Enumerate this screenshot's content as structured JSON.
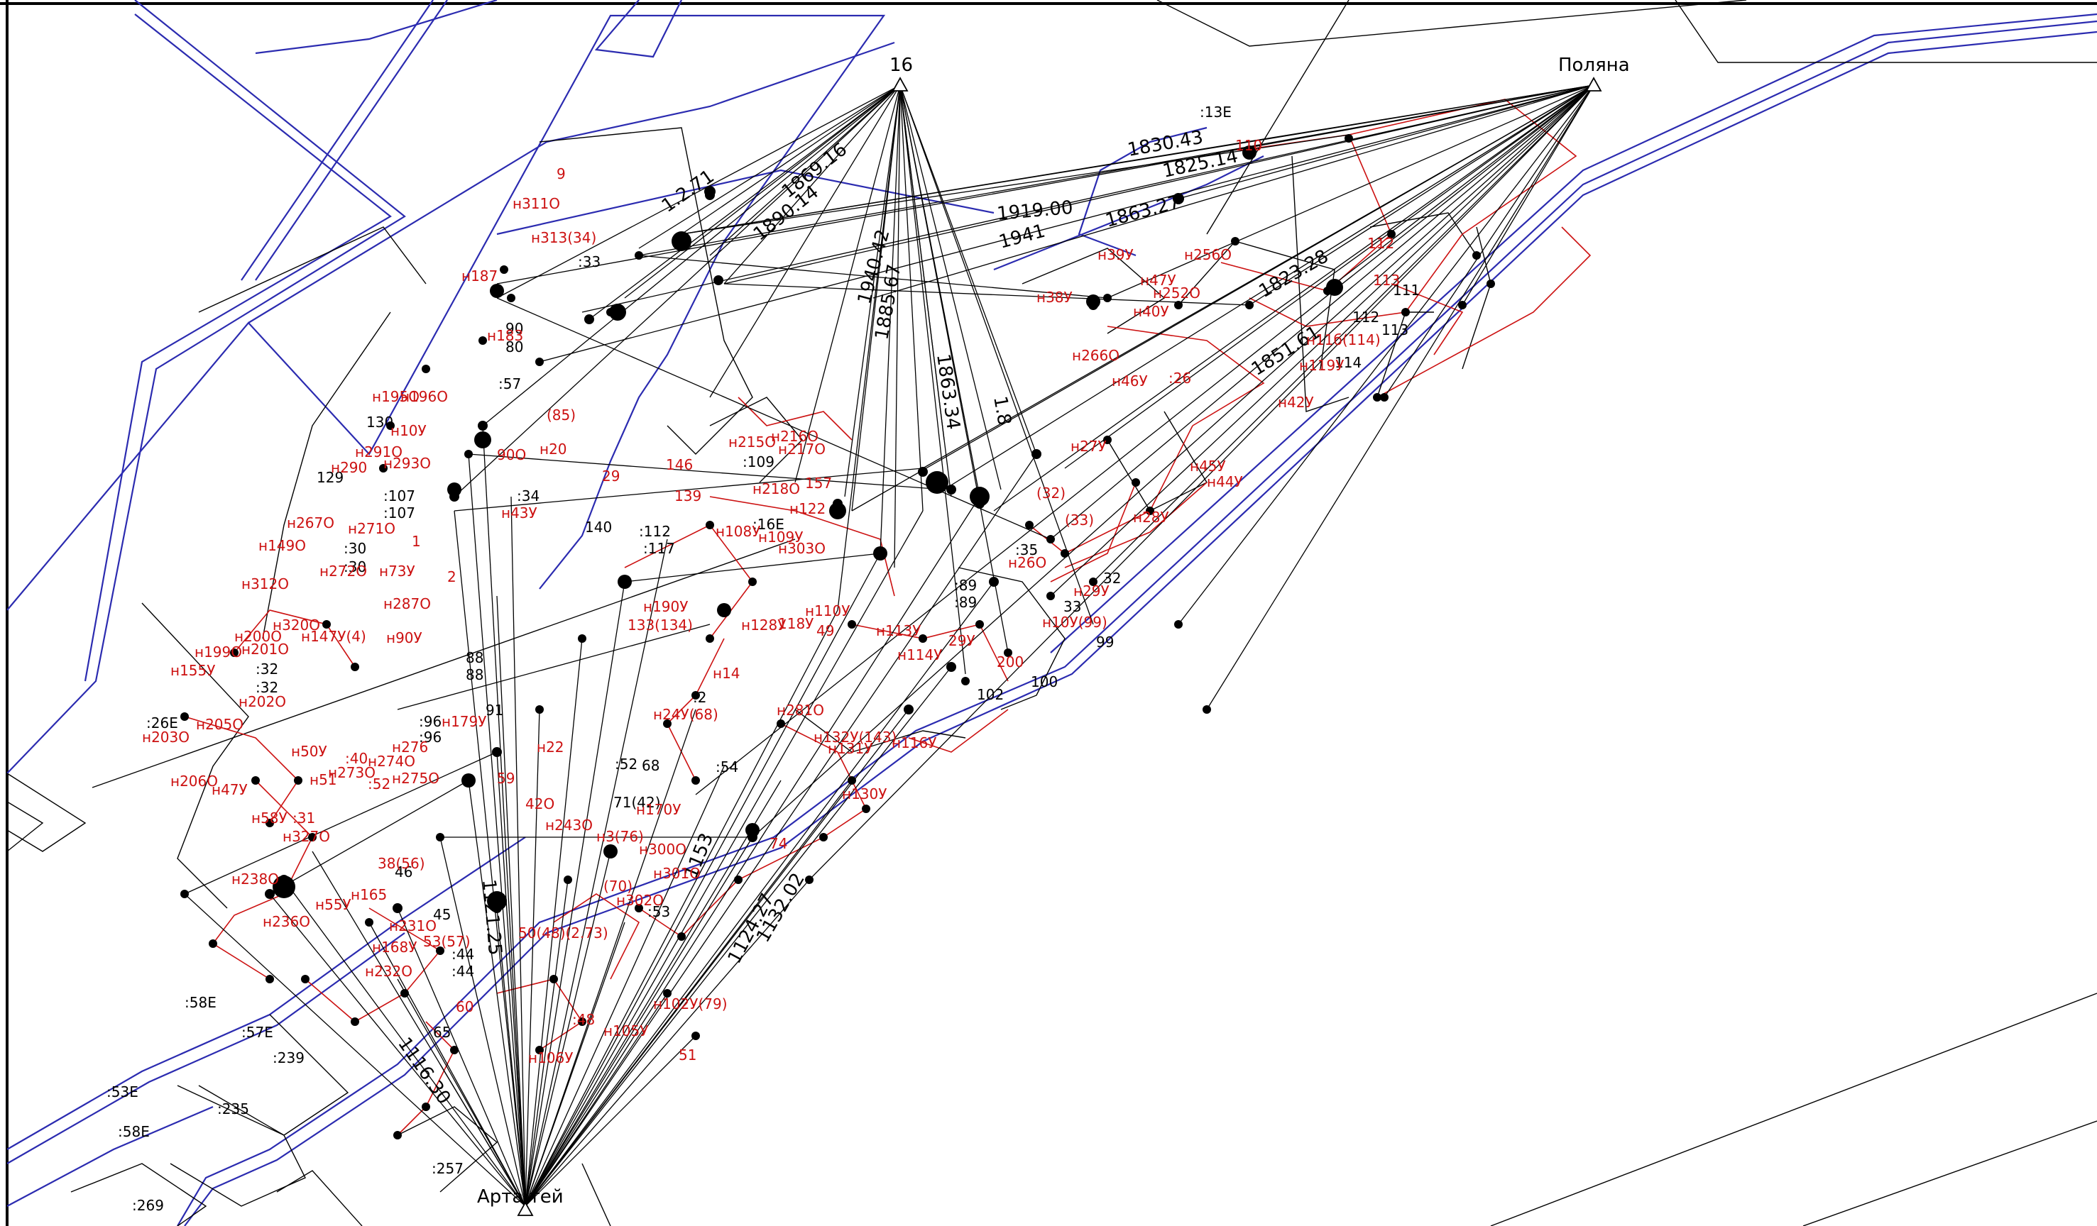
{
  "colors": {
    "background": "#ffffff",
    "parcel_blue": "#2b2bb0",
    "ray_black": "#000000",
    "point_red": "#cc1111",
    "label_black": "#000000"
  },
  "stations": {
    "s16": {
      "name": "16"
    },
    "polyana": {
      "name": "Поляна"
    },
    "artaktey": {
      "name": "Арта.тей"
    }
  },
  "black_labels": {
    "b13e": ":13E",
    "b111": "111",
    "b112": "112",
    "b113": "113",
    "b114": "114",
    "b109": ":109",
    "b16e": ":16E",
    "b112c": ":112",
    "b117": ":117",
    "b107a": ":107",
    "b107b": ":107",
    "b30a": ":30",
    "b30b": ":30",
    "b32a": ":32",
    "b32b": ":32",
    "b26e": ":26E",
    "b96a": ":96",
    "b96b": ":96",
    "b88a": "88",
    "b88b": "88",
    "b91": "91",
    "b68": "68",
    "b52": ":52",
    "b7142": "71(42)",
    "b89a": ":89",
    "b89b": ":89",
    "b99": "99",
    "b100": "100",
    "b102": "102",
    "b32c": "32",
    "b33": "33",
    "b35": ":35",
    "b44a": ":44",
    "b44b": ":44",
    "b45": "45",
    "b65": "65",
    "b53": ":53",
    "b57": ":57",
    "b90": "90",
    "b80": "80",
    "b34": ":34",
    "b58e": ":58E",
    "b57e": ":57E",
    "b239": ":239",
    "b53e": ":53E",
    "b58e2": ":58E",
    "b235": ":235",
    "b257": ":257",
    "b269": ":269",
    "b140": "140",
    "b129": "129",
    "b130": "130",
    "b33c": ":33",
    "b2": ":2",
    "b46": "46",
    "b54": ":54"
  },
  "red_labels": {
    "r110": "110",
    "r112": "112",
    "r113": "113",
    "r42u": "н42У",
    "r45u": "н45У",
    "r44u": "н44У",
    "r28u": "н28У",
    "r29u": "н29У",
    "r10999": "н10У(99)",
    "r26o": "н26О",
    "r33": "(33)",
    "r32": "(32)",
    "r27u": "н27У",
    "r46u": "н46У",
    "r26": ":26",
    "r266o": "н266О",
    "r47u": "н47У",
    "r40u": "н40У",
    "r252o": "н252О",
    "r39u": "н39У",
    "r38u": "н38У",
    "r256o": "н256О",
    "r11614": "н11б(114)",
    "r11912": "н119У",
    "r215o": "н215О",
    "r216o": "н216О",
    "r217o": "н217О",
    "r218o": "н218О",
    "r157": "157",
    "r139": "139",
    "r146": "146",
    "r122": "н122",
    "r108u": "н108У",
    "r109u": "н109У",
    "r303o": "н303О",
    "r128u": "н128У",
    "r118u": "118У",
    "r49": "49",
    "r110u": "н110У",
    "r113u": "н113У",
    "r114u": "н114У",
    "r29u2": "29У",
    "r200": "200",
    "r130u": "н130У",
    "r13212": "н132У(143)",
    "r131u": "н131У",
    "r116u": "н116У",
    "r14": "н14",
    "r281o": "н281О",
    "r74a": "74",
    "r190u": "н190У",
    "r133": "133(134)",
    "r73u": "н73У",
    "r287o": "н287О",
    "r90u": "н90У",
    "r147u": "н147У(4)",
    "r149o": "н149О",
    "r312o": "н312О",
    "r320o": "н320О",
    "r200o": "н200О",
    "r201o": "н201О",
    "r155u": "н155У",
    "r199o": "н199О",
    "r202o": "н202О",
    "r205o": "н205О",
    "r203o": "н203О",
    "r206o": "н206О",
    "r47u2": "н47У",
    "r58u": "н58У",
    "r31": ":31",
    "r50u": "н50У",
    "r51": "н51",
    "r327o": "н327О",
    "r238o": "н238О",
    "r236o": "н236О",
    "r55u": "н55У",
    "r168u": "н168У",
    "r232o": "н232О",
    "r231o": "н231О",
    "r165": "н165",
    "r3856": "38(56)",
    "r5357": "53(57)",
    "r50": "50(48)(2.73)",
    "r48": ":48",
    "r105u": "н105У",
    "r102u": "н102У(79)",
    "r51b": "51",
    "r106u": "н106У",
    "r60": "60",
    "r179u": "н179У",
    "r276": "н276",
    "r273o": "н273О",
    "r274o": "н274О",
    "r275o": "н275О",
    "r40": ":40",
    "r52": ":52",
    "r59": "59",
    "r42o": "42О",
    "r243o": "н243О",
    "r170u": "н170У",
    "r3076": "н3(76)",
    "r300o": "н300О",
    "r301o": "н301О",
    "r302o": "н302О",
    "r7": "(70)",
    "r196o": "н196О",
    "r195o": "н195О",
    "r10u": "н10У",
    "r291o": "н291О",
    "r293o": "н293О",
    "r267o": "н267О",
    "r271o": "н271О",
    "r272o": "н272О",
    "r290": "н290",
    "r311o": "н311О",
    "r313o": "н313(34)",
    "r187": "н187",
    "r183": "н183",
    "r9": "9",
    "r85": "(85)",
    "r90": "90О",
    "r43u": "н43У",
    "r29": "29",
    "r20": "н20",
    "r1": "1",
    "r24u": "н24У(68)",
    "r2": "2",
    "r22": "н22"
  },
  "measurements": {
    "m1": "1830.43",
    "m2": "1825.14",
    "m3": "1863.27",
    "m4": "1919.00",
    "m5": "1941",
    "m6": "1890.14",
    "m7": "1869.16",
    "m8": "1940.42",
    "m9": "1885.67",
    "m10": "1863.34",
    "m11": "1823.28",
    "m12": "1851.61",
    "m13": "1124.27",
    "m14": "1132.02",
    "m15": "1121.25",
    "m16": "1153",
    "m17": "1116.30",
    "m18": "1.2.71",
    "m19": "1.8"
  }
}
